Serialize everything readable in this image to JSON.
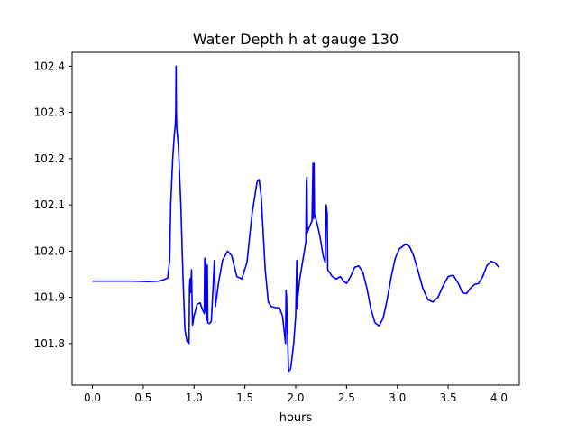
{
  "chart_data": {
    "type": "line",
    "title": "Water Depth h at gauge 130",
    "xlabel": "hours",
    "ylabel": "",
    "xlim": [
      -0.2,
      4.2
    ],
    "ylim": [
      101.71,
      102.43
    ],
    "x_ticks": [
      0.0,
      0.5,
      1.0,
      1.5,
      2.0,
      2.5,
      3.0,
      3.5,
      4.0
    ],
    "x_tick_labels": [
      "0.0",
      "0.5",
      "1.0",
      "1.5",
      "2.0",
      "2.5",
      "3.0",
      "3.5",
      "4.0"
    ],
    "y_ticks": [
      101.8,
      101.9,
      102.0,
      102.1,
      102.2,
      102.3,
      102.4
    ],
    "y_tick_labels": [
      "101.8",
      "101.9",
      "102.0",
      "102.1",
      "102.2",
      "102.3",
      "102.4"
    ],
    "grid": false,
    "line_color": "#0000ff",
    "series": [
      {
        "name": "",
        "points": [
          [
            0.0,
            101.935
          ],
          [
            0.2,
            101.935
          ],
          [
            0.4,
            101.935
          ],
          [
            0.55,
            101.934
          ],
          [
            0.65,
            101.935
          ],
          [
            0.7,
            101.938
          ],
          [
            0.74,
            101.942
          ],
          [
            0.76,
            101.98
          ],
          [
            0.77,
            102.1
          ],
          [
            0.79,
            102.2
          ],
          [
            0.805,
            102.25
          ],
          [
            0.815,
            102.27
          ],
          [
            0.82,
            102.3
          ],
          [
            0.823,
            102.4
          ],
          [
            0.826,
            102.3
          ],
          [
            0.83,
            102.265
          ],
          [
            0.845,
            102.23
          ],
          [
            0.87,
            102.1
          ],
          [
            0.89,
            101.95
          ],
          [
            0.91,
            101.83
          ],
          [
            0.93,
            101.805
          ],
          [
            0.95,
            101.8
          ],
          [
            0.955,
            101.92
          ],
          [
            0.96,
            101.94
          ],
          [
            0.965,
            101.91
          ],
          [
            0.975,
            101.96
          ],
          [
            0.985,
            101.84
          ],
          [
            1.0,
            101.86
          ],
          [
            1.03,
            101.885
          ],
          [
            1.06,
            101.888
          ],
          [
            1.08,
            101.875
          ],
          [
            1.1,
            101.865
          ],
          [
            1.105,
            101.985
          ],
          [
            1.11,
            101.87
          ],
          [
            1.115,
            101.98
          ],
          [
            1.12,
            101.85
          ],
          [
            1.13,
            101.97
          ],
          [
            1.135,
            101.845
          ],
          [
            1.15,
            101.843
          ],
          [
            1.17,
            101.848
          ],
          [
            1.2,
            101.98
          ],
          [
            1.21,
            101.88
          ],
          [
            1.24,
            101.93
          ],
          [
            1.28,
            101.98
          ],
          [
            1.33,
            102.0
          ],
          [
            1.37,
            101.99
          ],
          [
            1.42,
            101.945
          ],
          [
            1.47,
            101.94
          ],
          [
            1.52,
            101.975
          ],
          [
            1.57,
            102.08
          ],
          [
            1.62,
            102.15
          ],
          [
            1.64,
            102.155
          ],
          [
            1.66,
            102.12
          ],
          [
            1.7,
            101.96
          ],
          [
            1.73,
            101.89
          ],
          [
            1.76,
            101.88
          ],
          [
            1.8,
            101.878
          ],
          [
            1.84,
            101.877
          ],
          [
            1.87,
            101.86
          ],
          [
            1.89,
            101.82
          ],
          [
            1.9,
            101.8
          ],
          [
            1.905,
            101.915
          ],
          [
            1.91,
            101.9
          ],
          [
            1.915,
            101.85
          ],
          [
            1.93,
            101.74
          ],
          [
            1.95,
            101.745
          ],
          [
            1.98,
            101.8
          ],
          [
            2.0,
            101.86
          ],
          [
            2.01,
            101.98
          ],
          [
            2.015,
            101.875
          ],
          [
            2.02,
            101.9
          ],
          [
            2.04,
            101.94
          ],
          [
            2.07,
            101.98
          ],
          [
            2.1,
            102.02
          ],
          [
            2.105,
            102.15
          ],
          [
            2.11,
            102.16
          ],
          [
            2.115,
            102.04
          ],
          [
            2.13,
            102.05
          ],
          [
            2.15,
            102.06
          ],
          [
            2.16,
            102.065
          ],
          [
            2.17,
            102.19
          ],
          [
            2.175,
            102.07
          ],
          [
            2.18,
            102.19
          ],
          [
            2.185,
            102.08
          ],
          [
            2.21,
            102.06
          ],
          [
            2.24,
            102.03
          ],
          [
            2.27,
            101.99
          ],
          [
            2.29,
            101.975
          ],
          [
            2.3,
            102.1
          ],
          [
            2.31,
            102.08
          ],
          [
            2.315,
            101.96
          ],
          [
            2.33,
            101.955
          ],
          [
            2.36,
            101.945
          ],
          [
            2.4,
            101.94
          ],
          [
            2.44,
            101.945
          ],
          [
            2.47,
            101.935
          ],
          [
            2.5,
            101.93
          ],
          [
            2.54,
            101.945
          ],
          [
            2.58,
            101.965
          ],
          [
            2.62,
            101.968
          ],
          [
            2.66,
            101.955
          ],
          [
            2.7,
            101.92
          ],
          [
            2.74,
            101.875
          ],
          [
            2.78,
            101.845
          ],
          [
            2.82,
            101.838
          ],
          [
            2.86,
            101.855
          ],
          [
            2.9,
            101.895
          ],
          [
            2.94,
            101.945
          ],
          [
            2.98,
            101.985
          ],
          [
            3.02,
            102.005
          ],
          [
            3.08,
            102.015
          ],
          [
            3.12,
            102.01
          ],
          [
            3.16,
            101.99
          ],
          [
            3.2,
            101.96
          ],
          [
            3.25,
            101.92
          ],
          [
            3.3,
            101.895
          ],
          [
            3.35,
            101.89
          ],
          [
            3.4,
            101.9
          ],
          [
            3.45,
            101.925
          ],
          [
            3.5,
            101.945
          ],
          [
            3.55,
            101.948
          ],
          [
            3.6,
            101.93
          ],
          [
            3.64,
            101.91
          ],
          [
            3.68,
            101.908
          ],
          [
            3.72,
            101.92
          ],
          [
            3.76,
            101.928
          ],
          [
            3.8,
            101.93
          ],
          [
            3.84,
            101.945
          ],
          [
            3.88,
            101.968
          ],
          [
            3.92,
            101.978
          ],
          [
            3.96,
            101.975
          ],
          [
            4.0,
            101.965
          ]
        ]
      }
    ]
  }
}
